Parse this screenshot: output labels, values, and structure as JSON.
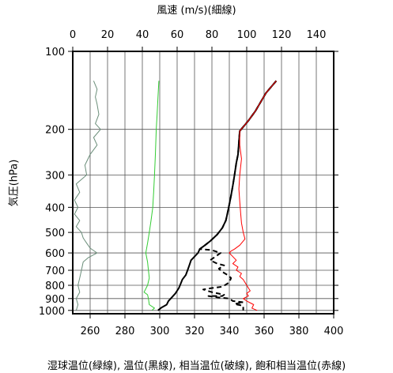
{
  "chart_data": {
    "type": "line",
    "title_top": "風速 (m/s)(細線)",
    "xlabel_bottom": "湿球温位(緑線), 温位(黒線), 相当温位(破線), 飽和相当温位(赤線)",
    "ylabel": "気圧(hPa)",
    "ylim": [
      1030,
      100
    ],
    "y_scale": "log",
    "x_bottom_lim": [
      250,
      400
    ],
    "x_top_lim": [
      0,
      150
    ],
    "y_ticks": [
      "100",
      "200",
      "300",
      "400",
      "500",
      "600",
      "700",
      "800",
      "900",
      "1000"
    ],
    "x_bottom_ticks": [
      "260",
      "280",
      "300",
      "320",
      "340",
      "360",
      "380",
      "400"
    ],
    "x_top_ticks": [
      "0",
      "20",
      "40",
      "60",
      "80",
      "100",
      "120",
      "140"
    ],
    "grid": true,
    "series": [
      {
        "color": "#6b8e7a",
        "axis": "top",
        "points": [
          [
            12,
            130
          ],
          [
            14,
            140
          ],
          [
            13,
            150
          ],
          [
            14,
            160
          ],
          [
            15,
            175
          ],
          [
            13,
            190
          ],
          [
            16,
            200
          ],
          [
            12,
            215
          ],
          [
            14,
            230
          ],
          [
            10,
            250
          ],
          [
            7,
            275
          ],
          [
            8,
            300
          ],
          [
            2,
            325
          ],
          [
            4,
            350
          ],
          [
            1,
            375
          ],
          [
            3,
            400
          ],
          [
            1,
            425
          ],
          [
            4,
            450
          ],
          [
            2,
            475
          ],
          [
            5,
            500
          ],
          [
            6,
            525
          ],
          [
            8,
            550
          ],
          [
            10,
            575
          ],
          [
            14,
            600
          ],
          [
            9,
            625
          ],
          [
            6,
            650
          ],
          [
            5,
            700
          ],
          [
            4,
            750
          ],
          [
            3,
            800
          ],
          [
            4,
            850
          ],
          [
            2,
            900
          ],
          [
            3,
            950
          ],
          [
            2,
            1000
          ]
        ]
      },
      {
        "color": "#33cc33",
        "axis": "bottom",
        "points": [
          [
            299.5,
            130
          ],
          [
            299,
            150
          ],
          [
            298.5,
            175
          ],
          [
            298,
            200
          ],
          [
            297.5,
            250
          ],
          [
            297,
            300
          ],
          [
            296.5,
            350
          ],
          [
            296,
            400
          ],
          [
            295,
            450
          ],
          [
            294,
            500
          ],
          [
            293,
            550
          ],
          [
            292,
            600
          ],
          [
            293,
            650
          ],
          [
            293.5,
            700
          ],
          [
            294,
            750
          ],
          [
            293,
            800
          ],
          [
            291,
            850
          ],
          [
            293,
            870
          ],
          [
            293.5,
            900
          ],
          [
            294,
            950
          ],
          [
            297,
            980
          ],
          [
            295.5,
            1000
          ]
        ]
      },
      {
        "color": "#000000",
        "axis": "bottom",
        "points": [
          [
            367,
            130
          ],
          [
            361,
            145
          ],
          [
            355,
            170
          ],
          [
            351,
            185
          ],
          [
            346,
            203
          ],
          [
            345.5,
            225
          ],
          [
            345,
            250
          ],
          [
            344,
            270
          ],
          [
            343,
            300
          ],
          [
            342,
            330
          ],
          [
            341,
            360
          ],
          [
            340,
            390
          ],
          [
            339,
            420
          ],
          [
            338,
            450
          ],
          [
            336,
            480
          ],
          [
            333,
            510
          ],
          [
            329,
            540
          ],
          [
            326,
            560
          ],
          [
            323,
            580
          ],
          [
            322,
            600
          ],
          [
            320,
            620
          ],
          [
            318,
            640
          ],
          [
            317,
            670
          ],
          [
            316,
            700
          ],
          [
            315,
            730
          ],
          [
            313,
            760
          ],
          [
            312,
            790
          ],
          [
            311,
            820
          ],
          [
            309,
            860
          ],
          [
            307,
            890
          ],
          [
            305,
            920
          ],
          [
            304,
            950
          ],
          [
            301,
            975
          ],
          [
            299,
            1000
          ]
        ]
      },
      {
        "color": "#000000",
        "axis": "bottom",
        "dashed": true,
        "points": [
          [
            367,
            130
          ],
          [
            361,
            145
          ],
          [
            355,
            170
          ],
          [
            351,
            185
          ],
          [
            346,
            203
          ],
          [
            345.5,
            225
          ],
          [
            345,
            250
          ],
          [
            344,
            270
          ],
          [
            343,
            300
          ],
          [
            342,
            330
          ],
          [
            341,
            360
          ],
          [
            340,
            390
          ],
          [
            339,
            420
          ],
          [
            338,
            450
          ],
          [
            336,
            480
          ],
          [
            333,
            510
          ],
          [
            329,
            540
          ],
          [
            326,
            560
          ],
          [
            323,
            580
          ],
          [
            330,
            585
          ],
          [
            335,
            600
          ],
          [
            332,
            620
          ],
          [
            329,
            640
          ],
          [
            333,
            660
          ],
          [
            337,
            670
          ],
          [
            334,
            690
          ],
          [
            336,
            710
          ],
          [
            339,
            730
          ],
          [
            341,
            750
          ],
          [
            340,
            780
          ],
          [
            336,
            810
          ],
          [
            330,
            820
          ],
          [
            325,
            830
          ],
          [
            330,
            850
          ],
          [
            337,
            870
          ],
          [
            336,
            880
          ],
          [
            328,
            880
          ],
          [
            333,
            890
          ],
          [
            340,
            900
          ],
          [
            342,
            920
          ],
          [
            348,
            930
          ],
          [
            343,
            945
          ],
          [
            348,
            960
          ],
          [
            348,
            1000
          ]
        ]
      },
      {
        "color": "#ff0000",
        "axis": "bottom",
        "points": [
          [
            367,
            130
          ],
          [
            361,
            145
          ],
          [
            355,
            170
          ],
          [
            351,
            185
          ],
          [
            346,
            203
          ],
          [
            346,
            230
          ],
          [
            347,
            260
          ],
          [
            346,
            300
          ],
          [
            345.5,
            340
          ],
          [
            346,
            380
          ],
          [
            346.5,
            420
          ],
          [
            347,
            460
          ],
          [
            348,
            500
          ],
          [
            349,
            530
          ],
          [
            346,
            560
          ],
          [
            343,
            580
          ],
          [
            341,
            590
          ],
          [
            340,
            600
          ],
          [
            342,
            620
          ],
          [
            344,
            640
          ],
          [
            342,
            660
          ],
          [
            345,
            680
          ],
          [
            344,
            700
          ],
          [
            347,
            720
          ],
          [
            346,
            740
          ],
          [
            348,
            760
          ],
          [
            349,
            780
          ],
          [
            350,
            800
          ],
          [
            352,
            840
          ],
          [
            350,
            860
          ],
          [
            351,
            880
          ],
          [
            348,
            900
          ],
          [
            350,
            920
          ],
          [
            354,
            950
          ],
          [
            353,
            980
          ],
          [
            356,
            1000
          ]
        ]
      }
    ]
  }
}
